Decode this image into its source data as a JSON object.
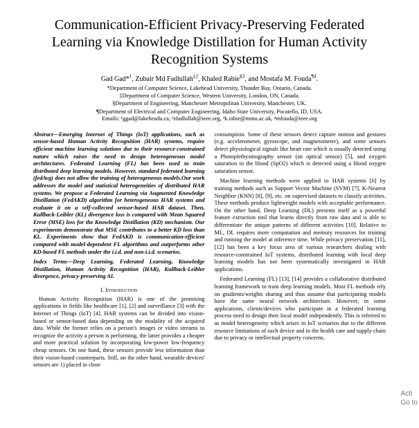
{
  "title": "Communication-Efficient Privacy-Preserving Federated Learning via Knowledge Distillation for Human Activity Recognition Systems",
  "authors_html": "Gad Gad*<sup>1</sup>, Zubair Md Fadlullah<sup>‡2</sup>, Khaled Rabie<sup>§3</sup>, and Mostafa M. Fouda<sup>¶4</sup>.",
  "affiliations": [
    "*Department of Computer Science, Lakehead University, Thunder Bay, Ontario, Canada.",
    "‡Department of Computer Science, Western University, London, ON, Canada.",
    "§Department of Engineering, Manchester Metropolitan University, Manchester, UK.",
    "¶Department of Electrical and Computer Engineering, Idaho State University, Pocatello, ID, USA."
  ],
  "emails": "Emails: ¹ggad@lakeheadu.ca, ²zfadlullah@ieee.org, ³k.rabie@mmu.ac.uk, ⁴mfouda@ieee.org",
  "abstract": "Abstract—Emerging Internet of Things (IoT) applications, such as sensor-based Human Activity Recognition (HAR) systems, require efficient machine learning solutions due to their resource-constrained nature which raises the need to design heterogeneous model architectures. Federated Learning (FL) has been used to train distributed deep learning models. However, standard federated learning (fedAvg) does not allow the training of heterogeneous models.Our work addresses the model and statistical heterogeneities of distributed HAR systems. We propose a Federated Learning via Augmented Knowledge Distillation (FedAKD) algorithm for heterogeneous HAR systems and evaluate it on a self-collected sensor-based HAR dataset. Then, Kullback-Leibler (KL) divergence loss is compared with Mean Squared Error (MSE) loss for the Knowledge Distillation (KD) mechanism. Our experiments demonstrate that MSE contributes to a better KD loss than KL. Experiments show that FedAKD is communication-efficient compared with model-dependent FL algorithms and outperforms other KD-based FL methods under the i.i.d. and non-i.i.d. scenarios.",
  "index_terms": "Index Terms—Deep Learning, Federated Learning, Knowledge Distillation, Human Activity Recognition (HAR), Kullback-Leibler divergence, privacy-preserving AI.",
  "section1": "I.   Introduction",
  "left_intro": "Human Activity Recognition (HAR) is one of the promising applications in fields like healthcare [1], [2] and surveillance [3] with the Internet of Things (IoT) [4]. HAR systems can be divided into vision-based or sensor-based data depending on the modality of the acquired data. While the former relies on a person's images or video streams to recognize the activity a person is performing, the latter provides a cheaper and more practical solution by incorporating low-power low-frequency cheap sensors. On one hand, these sensors provide less information than their vision-based counterparts. Still, on the other hand, wearable devices' sensors are 1) placed in close",
  "right_p1": "consumption. Some of these sensors detect capture motion and gestures (e.g. accelerometer, gyroscope, and magnetometer), and some sensors detect physiological signals like heart rate which is usually detected using a Photoplethysmography sensor (an optical sensor) [5], and oxygen saturation in the blood (SpO2) which is detected using a blood oxygen saturation sensor.",
  "right_p2": "Machine learning methods were applied to HAR systems [6] by training methods such as Support Vector Machine (SVM) [7], K-Nearest Neighbor (KNN) [8], [9], etc. on supervised datasets to classify activities. These methods produce lightweight models with acceptable performance. On the other hand, Deep Learning (DL) presents itself as a powerful feature extraction tool that learns directly from raw data and is able to differentiate the unique patterns of different activities [10]. Relative to ML, DL requires more computation and memory resources for training and running the model at inference time. While privacy preservation [11], [12] has been a key focus area of various researchers dealing with resource-constrained IoT systems, distributed learning with local deep learning models has not been systematically investigated in HAR applications.",
  "right_p3": "Federated Learning (FL) [13], [14] provides a collaborative distributed learning framework to train deep learning models. Most FL methods rely on gradients/weights sharing and thus assume that participating models have the same neural network architecture. However, in some applications, clients/devices who participate in a federated learning process need to design their local model independently. This is referred to as model heterogeneity which arises in IoT scenarios due to the different resource limitations of each device and in the health care and supply chain due to privacy or intellectual property concerns.",
  "side_label_1": "Acti",
  "side_label_2": "Go to"
}
